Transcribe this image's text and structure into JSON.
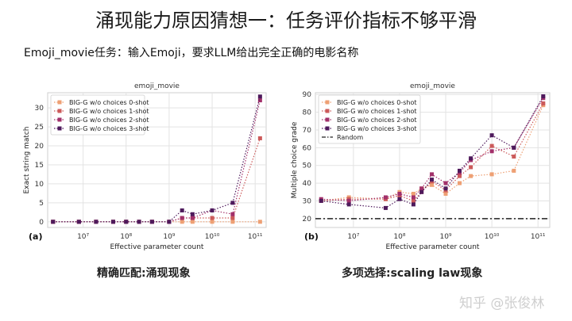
{
  "slide": {
    "title": "涌现能力原因猜想一：任务评价指标不够平滑",
    "subtitle": "Emoji_movie任务：输入Emoji，要求LLM给出完全正确的电影名称",
    "caption_left": "精确匹配:涌现现象",
    "caption_right": "多项选择:scaling law现象",
    "watermark": "知乎 @张俊林"
  },
  "chart_data": [
    {
      "type": "line",
      "panel_label": "(a)",
      "title": "emoji_movie",
      "xlabel": "Effective parameter count",
      "ylabel": "Exact string match",
      "xscale": "log",
      "xlim": [
        1500000,
        180000000000
      ],
      "ylim": [
        -1.5,
        34
      ],
      "yticks": [
        0,
        5,
        10,
        15,
        20,
        25,
        30
      ],
      "xtick_labels": [
        "10⁷",
        "10⁸",
        "10⁹",
        "10¹⁰",
        "10¹¹"
      ],
      "xticks": [
        10000000,
        100000000,
        1000000000,
        10000000000,
        100000000000
      ],
      "grid": true,
      "legend_position": "top-left",
      "x": [
        2000000,
        8000000,
        20000000,
        50000000,
        100000000,
        200000000,
        400000000,
        1000000000,
        2000000000,
        3500000000,
        10000000000,
        30000000000,
        130000000000
      ],
      "series": [
        {
          "name": "BIG-G w/o choices 0-shot",
          "color": "#eea074",
          "values": [
            0,
            0,
            0,
            0,
            0,
            0,
            0,
            0,
            0,
            0,
            0,
            0,
            0
          ]
        },
        {
          "name": "BIG-G w/o choices 1-shot",
          "color": "#cc5a5a",
          "values": [
            0,
            0,
            0,
            0,
            0,
            0,
            0,
            0,
            1,
            1,
            1,
            1,
            22
          ]
        },
        {
          "name": "BIG-G w/o choices 2-shot",
          "color": "#a2306a",
          "values": [
            0,
            0,
            0,
            0,
            0,
            0,
            0,
            0,
            1,
            1,
            3,
            2,
            32
          ]
        },
        {
          "name": "BIG-G w/o choices 3-shot",
          "color": "#4e1a5c",
          "values": [
            0,
            0,
            0,
            0,
            0,
            0,
            0,
            0,
            3,
            2,
            3,
            5,
            33
          ]
        }
      ]
    },
    {
      "type": "line",
      "panel_label": "(b)",
      "title": "emoji_movie",
      "xlabel": "Effective parameter count",
      "ylabel": "Multiple choice grade",
      "xscale": "log",
      "xlim": [
        1500000,
        180000000000
      ],
      "ylim": [
        15,
        91
      ],
      "yticks": [
        20,
        30,
        40,
        50,
        60,
        70,
        80,
        90
      ],
      "xtick_labels": [
        "10⁷",
        "10⁸",
        "10⁹",
        "10¹⁰",
        "10¹¹"
      ],
      "xticks": [
        10000000,
        100000000,
        1000000000,
        10000000000,
        100000000000
      ],
      "grid": true,
      "legend_position": "top-left",
      "x": [
        2000000,
        8000000,
        50000000,
        100000000,
        200000000,
        300000000,
        500000000,
        1000000000,
        2000000000,
        3500000000,
        10000000000,
        30000000000,
        130000000000
      ],
      "series": [
        {
          "name": "BIG-G w/o choices 0-shot",
          "color": "#eea074",
          "values": [
            30,
            32,
            31,
            35,
            34,
            37,
            39,
            34,
            40,
            44,
            45,
            47,
            84
          ]
        },
        {
          "name": "BIG-G w/o choices 1-shot",
          "color": "#cc5a5a",
          "values": [
            30,
            31,
            31,
            33,
            30,
            35,
            41,
            36,
            44,
            49,
            61,
            55,
            85
          ]
        },
        {
          "name": "BIG-G w/o choices 2-shot",
          "color": "#a2306a",
          "values": [
            31,
            30,
            32,
            34,
            32,
            37,
            45,
            40,
            46,
            53,
            58,
            60,
            88
          ]
        },
        {
          "name": "BIG-G w/o choices 3-shot",
          "color": "#4e1a5c",
          "values": [
            30,
            28,
            26,
            31,
            28,
            35,
            42,
            37,
            47,
            54,
            67,
            60,
            89
          ]
        }
      ],
      "reference_line": {
        "name": "Random",
        "value": 20,
        "color": "#222222"
      }
    }
  ]
}
